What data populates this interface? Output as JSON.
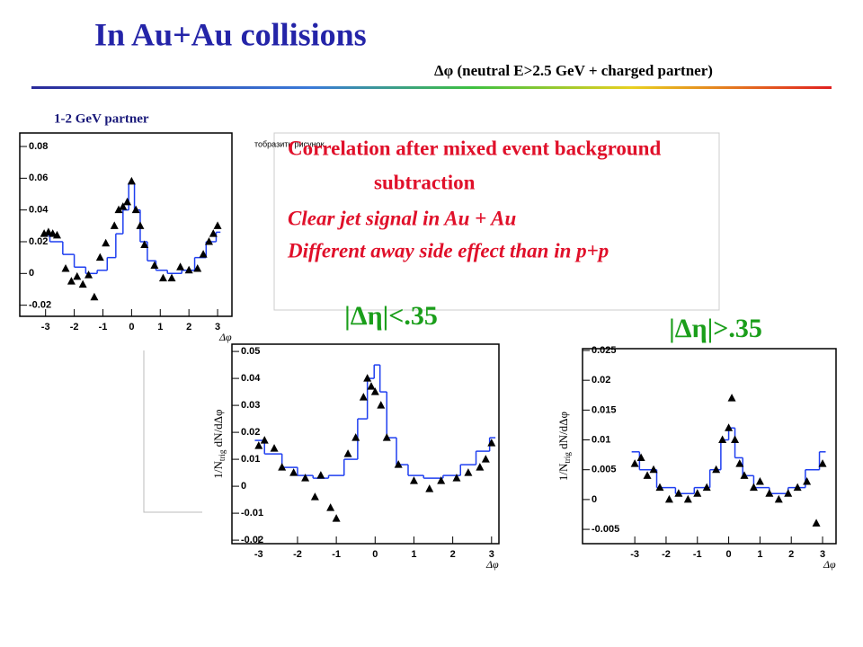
{
  "slide": {
    "title": "In Au+Au collisions",
    "subtitle": "Δφ (neutral E>2.5 GeV + charged partner)",
    "placeholder": "тобразить рисунок",
    "notes": [
      "Correlation after mixed event background",
      "subtraction",
      "Clear jet signal in Au + Au",
      "Different away side effect than in p+p"
    ]
  },
  "chart_data": [
    {
      "type": "scatter",
      "title": "1-2 GeV partner",
      "xlabel": "Δφ",
      "color": "#000000",
      "xlim": [
        -3.9,
        3.5
      ],
      "ylim": [
        -0.027,
        0.0885
      ],
      "xticks": [
        -3,
        -2,
        -1,
        0,
        1,
        2,
        3
      ],
      "yticks": [
        0.08,
        0.06,
        0.04,
        0.02,
        0,
        -0.02
      ],
      "x": [
        -3.05,
        -2.9,
        -2.75,
        -2.6,
        -2.3,
        -2.1,
        -1.9,
        -1.7,
        -1.5,
        -1.3,
        -1.1,
        -0.9,
        -0.6,
        -0.45,
        -0.3,
        -0.15,
        0.0,
        0.15,
        0.3,
        0.45,
        0.8,
        1.1,
        1.4,
        1.7,
        2.0,
        2.3,
        2.5,
        2.7,
        2.85,
        3.0
      ],
      "values": [
        0.025,
        0.026,
        0.025,
        0.024,
        0.003,
        -0.005,
        -0.002,
        -0.007,
        -0.001,
        -0.015,
        0.01,
        0.019,
        0.03,
        0.04,
        0.042,
        0.045,
        0.058,
        0.04,
        0.03,
        0.018,
        0.005,
        -0.003,
        -0.003,
        0.004,
        0.002,
        0.003,
        0.012,
        0.02,
        0.025,
        0.03
      ],
      "fit": {
        "color": "#1f3ff0",
        "x": [
          -3.1,
          -2.6,
          -2.2,
          -1.8,
          -1.4,
          -1.0,
          -0.7,
          -0.4,
          -0.2,
          0,
          0.2,
          0.4,
          0.7,
          1.0,
          1.5,
          2.0,
          2.4,
          2.8,
          3.1
        ],
        "values": [
          0.024,
          0.02,
          0.012,
          0.004,
          0.0,
          0.002,
          0.01,
          0.025,
          0.04,
          0.057,
          0.04,
          0.02,
          0.008,
          0.002,
          0.0,
          0.002,
          0.01,
          0.02,
          0.026
        ]
      }
    },
    {
      "type": "scatter",
      "title": "|Δη|<.35",
      "ylabel": [
        "1/N",
        "trig",
        " dN/dΔφ"
      ],
      "xlabel": "Δφ",
      "color": "#000000",
      "xlim": [
        -3.69,
        3.19
      ],
      "ylim": [
        -0.0213,
        0.0527
      ],
      "xticks": [
        -3,
        -2,
        -1,
        0,
        1,
        2,
        3
      ],
      "yticks": [
        0.05,
        0.04,
        0.03,
        0.02,
        0.01,
        0,
        -0.01,
        -0.02
      ],
      "x": [
        -3.0,
        -2.85,
        -2.6,
        -2.4,
        -2.1,
        -1.8,
        -1.55,
        -1.4,
        -1.15,
        -1.0,
        -0.7,
        -0.5,
        -0.3,
        -0.2,
        -0.1,
        0.0,
        0.15,
        0.3,
        0.6,
        1.0,
        1.4,
        1.7,
        2.1,
        2.4,
        2.7,
        2.85,
        3.0
      ],
      "values": [
        0.015,
        0.017,
        0.014,
        0.007,
        0.005,
        0.003,
        -0.004,
        0.004,
        -0.008,
        -0.012,
        0.012,
        0.018,
        0.033,
        0.04,
        0.037,
        0.035,
        0.03,
        0.018,
        0.008,
        0.002,
        -0.001,
        0.002,
        0.003,
        0.005,
        0.007,
        0.01,
        0.016
      ],
      "fit": {
        "color": "#1f3ff0",
        "x": [
          -3.1,
          -2.6,
          -2.2,
          -1.8,
          -1.4,
          -1.0,
          -0.6,
          -0.3,
          -0.1,
          0.05,
          0.2,
          0.4,
          0.7,
          1.0,
          1.5,
          2.0,
          2.4,
          2.8,
          3.1
        ],
        "values": [
          0.017,
          0.012,
          0.007,
          0.004,
          0.003,
          0.004,
          0.01,
          0.025,
          0.04,
          0.045,
          0.035,
          0.018,
          0.008,
          0.004,
          0.003,
          0.004,
          0.008,
          0.013,
          0.018
        ]
      }
    },
    {
      "type": "scatter",
      "title": "|Δη|>.35",
      "ylabel": [
        "1/N",
        "trig",
        " dN/dΔφ"
      ],
      "xlabel": "Δφ",
      "color": "#000000",
      "xlim": [
        -4.67,
        3.43
      ],
      "ylim": [
        -0.0074,
        0.0253
      ],
      "xticks": [
        -3,
        -2,
        -1,
        0,
        1,
        2,
        3
      ],
      "yticks": [
        0.025,
        0.02,
        0.015,
        0.01,
        0.005,
        0,
        -0.005
      ],
      "x": [
        -3.0,
        -2.8,
        -2.6,
        -2.4,
        -2.2,
        -1.9,
        -1.6,
        -1.3,
        -1.0,
        -0.7,
        -0.4,
        -0.2,
        0.0,
        0.1,
        0.2,
        0.35,
        0.5,
        0.8,
        1.0,
        1.3,
        1.6,
        1.9,
        2.2,
        2.5,
        2.8,
        3.0
      ],
      "values": [
        0.006,
        0.007,
        0.004,
        0.005,
        0.002,
        0.0,
        0.001,
        0.0,
        0.001,
        0.002,
        0.005,
        0.01,
        0.012,
        0.017,
        0.01,
        0.006,
        0.004,
        0.002,
        0.003,
        0.001,
        0.0,
        0.001,
        0.002,
        0.003,
        -0.004,
        0.006
      ],
      "fit": {
        "color": "#1f3ff0",
        "x": [
          -3.1,
          -2.6,
          -2.0,
          -1.4,
          -0.8,
          -0.4,
          -0.1,
          0.1,
          0.3,
          0.6,
          1.0,
          1.6,
          2.2,
          2.7,
          3.1
        ],
        "values": [
          0.008,
          0.005,
          0.002,
          0.001,
          0.002,
          0.005,
          0.01,
          0.012,
          0.007,
          0.004,
          0.002,
          0.001,
          0.002,
          0.005,
          0.008
        ]
      }
    }
  ]
}
